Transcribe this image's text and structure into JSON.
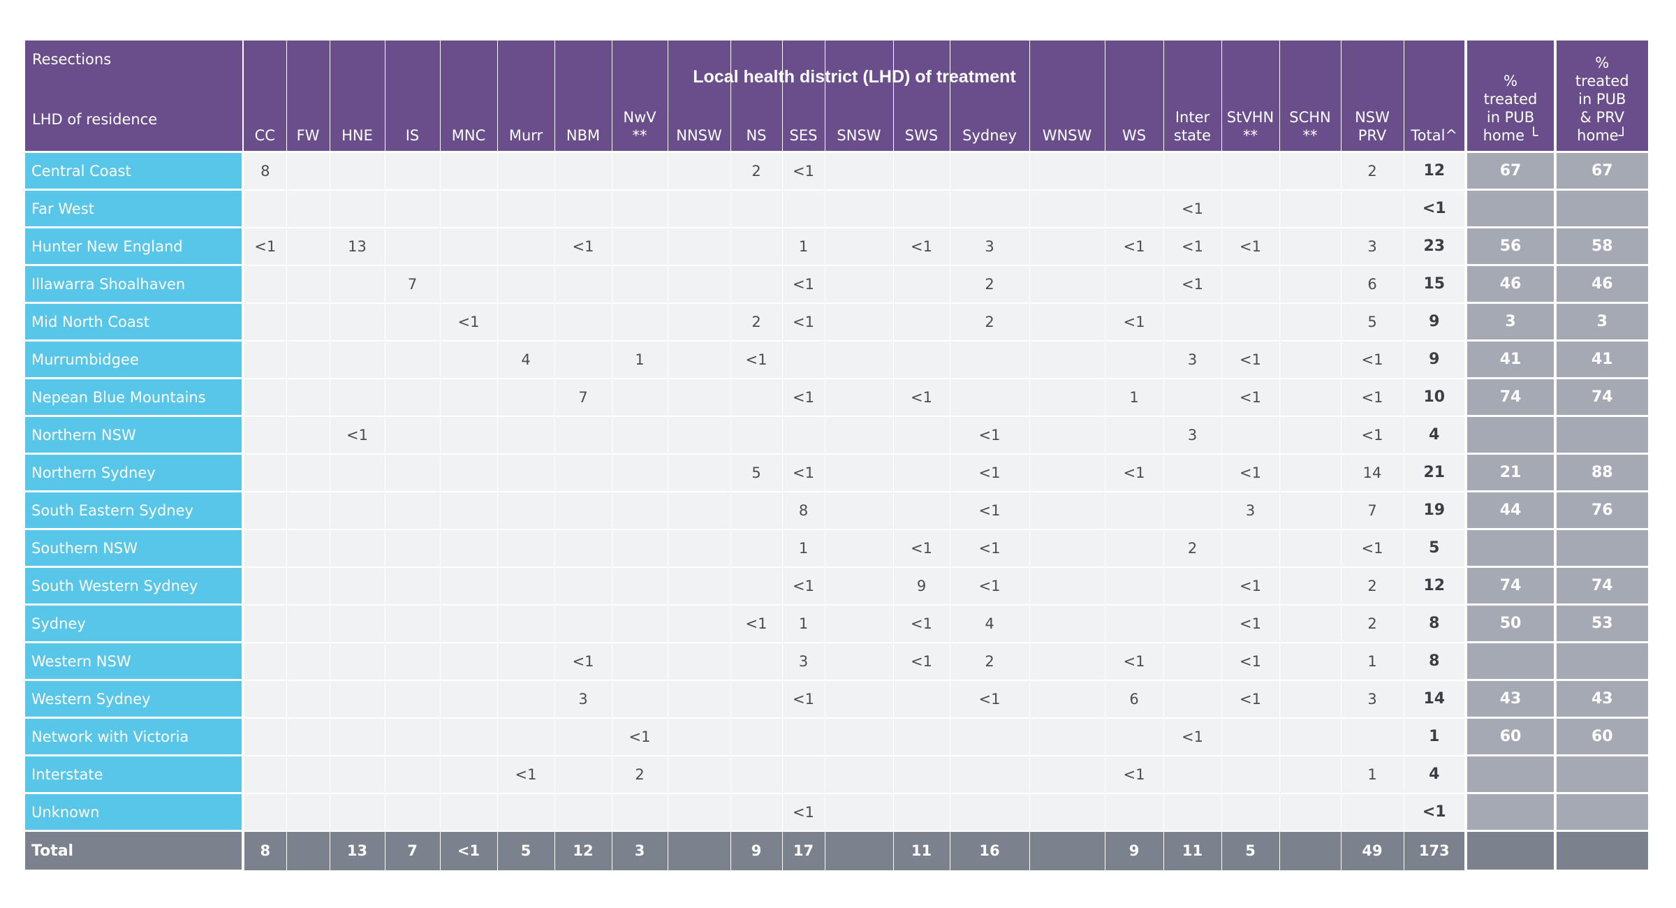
{
  "table": {
    "corner": {
      "title": "Resections",
      "subtitle": "LHD of residence"
    },
    "group_header": "Local health district (LHD) of treatment",
    "columns": [
      {
        "id": "cc",
        "label": "CC"
      },
      {
        "id": "fw",
        "label": "FW"
      },
      {
        "id": "hne",
        "label": "HNE"
      },
      {
        "id": "is",
        "label": "IS"
      },
      {
        "id": "mnc",
        "label": "MNC"
      },
      {
        "id": "murr",
        "label": "Murr"
      },
      {
        "id": "nbm",
        "label": "NBM"
      },
      {
        "id": "nwv",
        "label": "NwV\n**"
      },
      {
        "id": "nnsw",
        "label": "NNSW"
      },
      {
        "id": "ns",
        "label": "NS"
      },
      {
        "id": "ses",
        "label": "SES"
      },
      {
        "id": "snsw",
        "label": "SNSW"
      },
      {
        "id": "sws",
        "label": "SWS"
      },
      {
        "id": "sydney",
        "label": "Sydney"
      },
      {
        "id": "wnsw",
        "label": "WNSW"
      },
      {
        "id": "ws",
        "label": "WS"
      },
      {
        "id": "interstate",
        "label": "Inter\nstate"
      },
      {
        "id": "stvhn",
        "label": "StVHN\n**"
      },
      {
        "id": "schn",
        "label": "SCHN\n**"
      },
      {
        "id": "nswprv",
        "label": "NSW\nPRV"
      },
      {
        "id": "total",
        "label": "Total^"
      },
      {
        "id": "pct_pub",
        "label": "%\ntreated\nin PUB\nhome └"
      },
      {
        "id": "pct_pub_prv",
        "label": "%\ntreated\nin PUB\n& PRV\nhome┘"
      }
    ],
    "rows": [
      {
        "label": "Central Coast",
        "cells": [
          "8",
          "",
          "",
          "",
          "",
          "",
          "",
          "",
          "",
          "2",
          "<1",
          "",
          "",
          "",
          "",
          "",
          "",
          "",
          "",
          "2"
        ],
        "total": "12",
        "pct_pub": "67",
        "pct_pub_prv": "67"
      },
      {
        "label": "Far West",
        "cells": [
          "",
          "",
          "",
          "",
          "",
          "",
          "",
          "",
          "",
          "",
          "",
          "",
          "",
          "",
          "",
          "",
          "<1",
          "",
          "",
          ""
        ],
        "total": "<1",
        "pct_pub": "",
        "pct_pub_prv": ""
      },
      {
        "label": "Hunter New England",
        "cells": [
          "<1",
          "",
          "13",
          "",
          "",
          "",
          "<1",
          "",
          "",
          "",
          "1",
          "",
          "<1",
          "3",
          "",
          "<1",
          "<1",
          "<1",
          "",
          "3"
        ],
        "total": "23",
        "pct_pub": "56",
        "pct_pub_prv": "58"
      },
      {
        "label": "Illawarra Shoalhaven",
        "cells": [
          "",
          "",
          "",
          "7",
          "",
          "",
          "",
          "",
          "",
          "",
          "<1",
          "",
          "",
          "2",
          "",
          "",
          "<1",
          "",
          "",
          "6"
        ],
        "total": "15",
        "pct_pub": "46",
        "pct_pub_prv": "46"
      },
      {
        "label": "Mid North Coast",
        "cells": [
          "",
          "",
          "",
          "",
          "<1",
          "",
          "",
          "",
          "",
          "2",
          "<1",
          "",
          "",
          "2",
          "",
          "<1",
          "",
          "",
          "",
          "5"
        ],
        "total": "9",
        "pct_pub": "3",
        "pct_pub_prv": "3"
      },
      {
        "label": "Murrumbidgee",
        "cells": [
          "",
          "",
          "",
          "",
          "",
          "4",
          "",
          "1",
          "",
          "<1",
          "",
          "",
          "",
          "",
          "",
          "",
          "3",
          "<1",
          "",
          "<1"
        ],
        "total": "9",
        "pct_pub": "41",
        "pct_pub_prv": "41"
      },
      {
        "label": "Nepean Blue Mountains",
        "cells": [
          "",
          "",
          "",
          "",
          "",
          "",
          "7",
          "",
          "",
          "",
          "<1",
          "",
          "<1",
          "",
          "",
          "1",
          "",
          "<1",
          "",
          "<1"
        ],
        "total": "10",
        "pct_pub": "74",
        "pct_pub_prv": "74"
      },
      {
        "label": "Northern NSW",
        "cells": [
          "",
          "",
          "<1",
          "",
          "",
          "",
          "",
          "",
          "",
          "",
          "",
          "",
          "",
          "<1",
          "",
          "",
          "3",
          "",
          "",
          "<1"
        ],
        "total": "4",
        "pct_pub": "",
        "pct_pub_prv": ""
      },
      {
        "label": "Northern Sydney",
        "cells": [
          "",
          "",
          "",
          "",
          "",
          "",
          "",
          "",
          "",
          "5",
          "<1",
          "",
          "",
          "<1",
          "",
          "<1",
          "",
          "<1",
          "",
          "14"
        ],
        "total": "21",
        "pct_pub": "21",
        "pct_pub_prv": "88"
      },
      {
        "label": "South Eastern Sydney",
        "cells": [
          "",
          "",
          "",
          "",
          "",
          "",
          "",
          "",
          "",
          "",
          "8",
          "",
          "",
          "<1",
          "",
          "",
          "",
          "3",
          "",
          "7"
        ],
        "total": "19",
        "pct_pub": "44",
        "pct_pub_prv": "76"
      },
      {
        "label": "Southern NSW",
        "cells": [
          "",
          "",
          "",
          "",
          "",
          "",
          "",
          "",
          "",
          "",
          "1",
          "",
          "<1",
          "<1",
          "",
          "",
          "2",
          "",
          "",
          "<1"
        ],
        "total": "5",
        "pct_pub": "",
        "pct_pub_prv": ""
      },
      {
        "label": "South Western Sydney",
        "cells": [
          "",
          "",
          "",
          "",
          "",
          "",
          "",
          "",
          "",
          "",
          "<1",
          "",
          "9",
          "<1",
          "",
          "",
          "",
          "<1",
          "",
          "2"
        ],
        "total": "12",
        "pct_pub": "74",
        "pct_pub_prv": "74"
      },
      {
        "label": "Sydney",
        "cells": [
          "",
          "",
          "",
          "",
          "",
          "",
          "",
          "",
          "",
          "<1",
          "1",
          "",
          "<1",
          "4",
          "",
          "",
          "",
          "<1",
          "",
          "2"
        ],
        "total": "8",
        "pct_pub": "50",
        "pct_pub_prv": "53"
      },
      {
        "label": "Western NSW",
        "cells": [
          "",
          "",
          "",
          "",
          "",
          "",
          "<1",
          "",
          "",
          "",
          "3",
          "",
          "<1",
          "2",
          "",
          "<1",
          "",
          "<1",
          "",
          "1"
        ],
        "total": "8",
        "pct_pub": "",
        "pct_pub_prv": ""
      },
      {
        "label": "Western Sydney",
        "cells": [
          "",
          "",
          "",
          "",
          "",
          "",
          "3",
          "",
          "",
          "",
          "<1",
          "",
          "",
          "<1",
          "",
          "6",
          "",
          "<1",
          "",
          "3"
        ],
        "total": "14",
        "pct_pub": "43",
        "pct_pub_prv": "43"
      },
      {
        "label": "Network with Victoria",
        "cells": [
          "",
          "",
          "",
          "",
          "",
          "",
          "",
          "<1",
          "",
          "",
          "",
          "",
          "",
          "",
          "",
          "",
          "<1",
          "",
          "",
          ""
        ],
        "total": "1",
        "pct_pub": "60",
        "pct_pub_prv": "60"
      },
      {
        "label": "Interstate",
        "cells": [
          "",
          "",
          "",
          "",
          "",
          "<1",
          "",
          "2",
          "",
          "",
          "",
          "",
          "",
          "",
          "",
          "<1",
          "",
          "",
          "",
          "1"
        ],
        "total": "4",
        "pct_pub": "",
        "pct_pub_prv": ""
      },
      {
        "label": "Unknown",
        "cells": [
          "",
          "",
          "",
          "",
          "",
          "",
          "",
          "",
          "",
          "",
          "<1",
          "",
          "",
          "",
          "",
          "",
          "",
          "",
          "",
          ""
        ],
        "total": "<1",
        "pct_pub": "",
        "pct_pub_prv": ""
      }
    ],
    "total_row": {
      "label": "Total",
      "cells": [
        "8",
        "",
        "13",
        "7",
        "<1",
        "5",
        "12",
        "3",
        "",
        "9",
        "17",
        "",
        "11",
        "16",
        "",
        "9",
        "11",
        "5",
        "",
        "49"
      ],
      "total": "173",
      "pct_pub": "",
      "pct_pub_prv": ""
    }
  },
  "colors": {
    "header_purple": "#6a4e8c",
    "row_label_blue": "#58c6e9",
    "cell_bg": "#f1f2f4",
    "pct_bg": "#a5a9b3",
    "total_bg": "#7c818e",
    "cell_text": "#4a4c4e"
  }
}
